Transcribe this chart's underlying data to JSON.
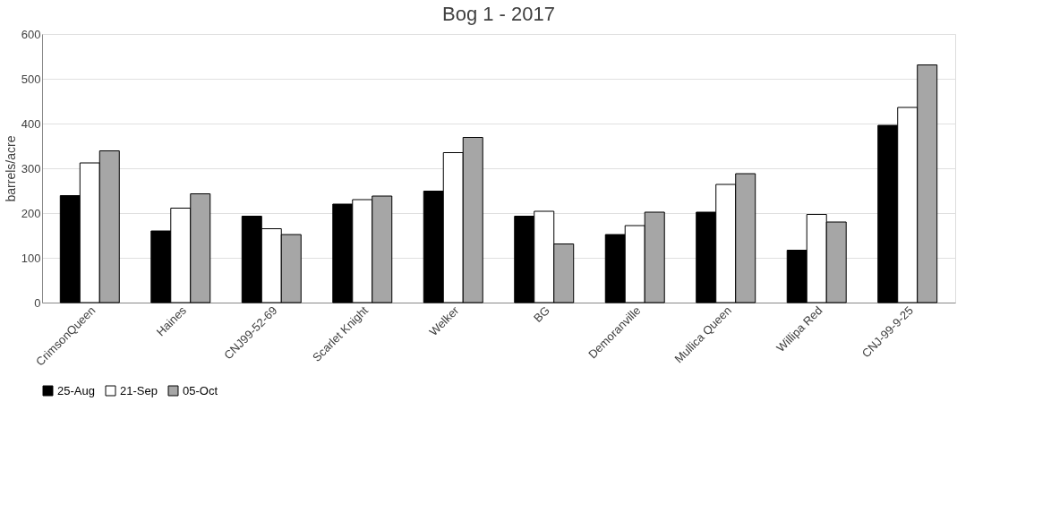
{
  "chart_data": {
    "type": "bar",
    "title": "Bog 1 - 2017",
    "ylabel": "barrels/acre",
    "categories": [
      "CrimsonQueen",
      "Haines",
      "CNJ99-52-69",
      "Scarlet Knight",
      "Welker",
      "BG",
      "Demoranville",
      "Mullica Queen",
      "Willipa Red",
      "CNJ-99-9-25"
    ],
    "series": [
      {
        "name": "25-Aug",
        "color": "#000000",
        "values": [
          239,
          160,
          193,
          220,
          249,
          193,
          152,
          202,
          117,
          396
        ]
      },
      {
        "name": "21-Sep",
        "color": "#ffffff",
        "values": [
          312,
          211,
          165,
          230,
          335,
          204,
          172,
          264,
          197,
          436
        ]
      },
      {
        "name": "05-Oct",
        "color": "#a6a6a6",
        "values": [
          339,
          243,
          152,
          238,
          369,
          131,
          202,
          288,
          180,
          531
        ]
      }
    ],
    "ylim": [
      0,
      600
    ],
    "yticks": [
      0,
      100,
      200,
      300,
      400,
      500,
      600
    ],
    "grid": "y",
    "legend": "bottom"
  }
}
